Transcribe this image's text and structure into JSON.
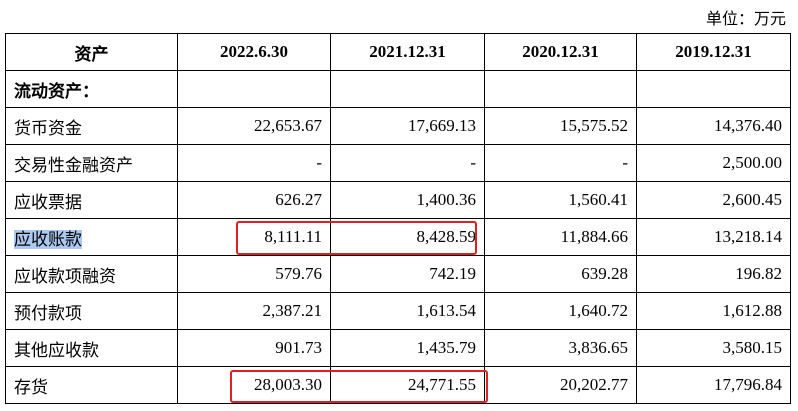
{
  "unit": "单位：万元",
  "table": {
    "header": [
      "资产",
      "2022.6.30",
      "2021.12.31",
      "2020.12.31",
      "2019.12.31"
    ],
    "section": "流动资产：",
    "rows": [
      [
        "货币资金",
        "22,653.67",
        "17,669.13",
        "15,575.52",
        "14,376.40"
      ],
      [
        "交易性金融资产",
        "-",
        "-",
        "-",
        "2,500.00"
      ],
      [
        "应收票据",
        "626.27",
        "1,400.36",
        "1,560.41",
        "2,600.45"
      ],
      [
        "应收账款",
        "8,111.11",
        "8,428.59",
        "11,884.66",
        "13,218.14"
      ],
      [
        "应收款项融资",
        "579.76",
        "742.19",
        "639.28",
        "196.82"
      ],
      [
        "预付款项",
        "2,387.21",
        "1,613.54",
        "1,640.72",
        "1,612.88"
      ],
      [
        "其他应收款",
        "901.73",
        "1,435.79",
        "3,836.65",
        "3,580.15"
      ],
      [
        "存货",
        "28,003.30",
        "24,771.55",
        "20,202.77",
        "17,796.84"
      ]
    ]
  }
}
